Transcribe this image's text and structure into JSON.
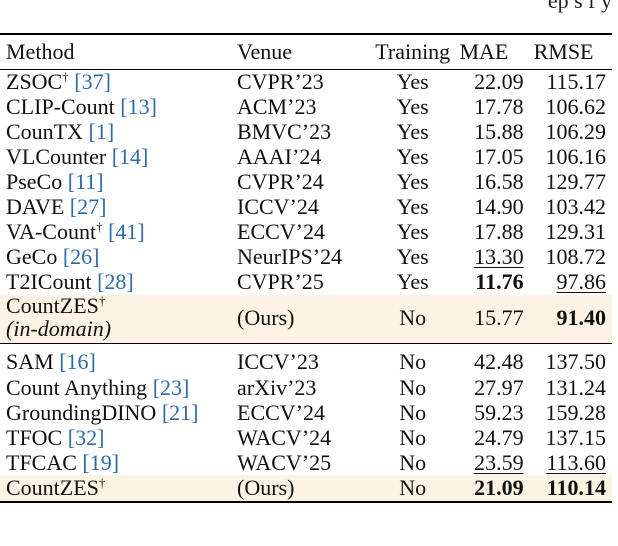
{
  "top_fragment": "ep s f  y",
  "columns": {
    "method": "Method",
    "venue": "Venue",
    "training": "Training",
    "mae": "MAE",
    "rmse": "RMSE"
  },
  "group1": [
    {
      "method": "ZSOC",
      "dagger": "†",
      "ref": "[37]",
      "venue": "CVPR’23",
      "training": "Yes",
      "mae": "22.09",
      "rmse": "115.17"
    },
    {
      "method": "CLIP-Count",
      "dagger": "",
      "ref": "[13]",
      "venue": "ACM’23",
      "training": "Yes",
      "mae": "17.78",
      "rmse": "106.62"
    },
    {
      "method": "CounTX",
      "dagger": "",
      "ref": "[1]",
      "venue": "BMVC’23",
      "training": "Yes",
      "mae": "15.88",
      "rmse": "106.29"
    },
    {
      "method": "VLCounter",
      "dagger": "",
      "ref": "[14]",
      "venue": "AAAI’24",
      "training": "Yes",
      "mae": "17.05",
      "rmse": "106.16"
    },
    {
      "method": "PseCo",
      "dagger": "",
      "ref": "[11]",
      "venue": "CVPR’24",
      "training": "Yes",
      "mae": "16.58",
      "rmse": "129.77"
    },
    {
      "method": "DAVE",
      "dagger": "",
      "ref": "[27]",
      "venue": "ICCV’24",
      "training": "Yes",
      "mae": "14.90",
      "rmse": "103.42"
    },
    {
      "method": "VA-Count",
      "dagger": "†",
      "ref": "[41]",
      "venue": "ECCV’24",
      "training": "Yes",
      "mae": "17.88",
      "rmse": "129.31"
    },
    {
      "method": "GeCo",
      "dagger": "",
      "ref": "[26]",
      "venue": "NeurIPS’24",
      "training": "Yes",
      "mae": "13.30",
      "rmse": "108.72"
    },
    {
      "method": "T2ICount",
      "dagger": "",
      "ref": "[28]",
      "venue": "CVPR’25",
      "training": "Yes",
      "mae": "11.76",
      "rmse": "97.86"
    }
  ],
  "ours_in_domain": {
    "method": "CountZES",
    "dagger": "†",
    "subtitle": "(in-domain)",
    "venue": "(Ours)",
    "training": "No",
    "mae": "15.77",
    "rmse": "91.40"
  },
  "group2": [
    {
      "method": "SAM",
      "ref": "[16]",
      "venue": "ICCV’23",
      "training": "No",
      "mae": "42.48",
      "rmse": "137.50"
    },
    {
      "method": "Count Anything",
      "ref": "[23]",
      "venue": "arXiv’23",
      "training": "No",
      "mae": "27.97",
      "rmse": "131.24"
    },
    {
      "method": "GroundingDINO",
      "ref": "[21]",
      "venue": "ECCV’24",
      "training": "No",
      "mae": "59.23",
      "rmse": "159.28"
    },
    {
      "method": "TFOC",
      "ref": "[32]",
      "venue": "WACV’24",
      "training": "No",
      "mae": "24.79",
      "rmse": "137.15"
    },
    {
      "method": "TFCAC",
      "ref": "[19]",
      "venue": "WACV’25",
      "training": "No",
      "mae": "23.59",
      "rmse": "113.60"
    }
  ],
  "ours_final": {
    "method": "CountZES",
    "dagger": "†",
    "venue": "(Ours)",
    "training": "No",
    "mae": "21.09",
    "rmse": "110.14"
  }
}
